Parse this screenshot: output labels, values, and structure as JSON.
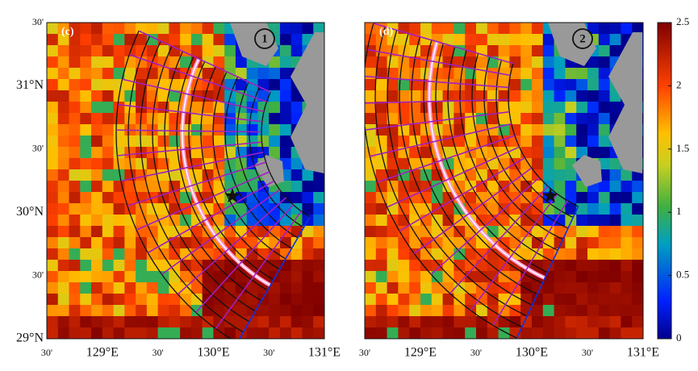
{
  "panels": [
    {
      "label": "(c)",
      "marker": "1"
    },
    {
      "label": "(d)",
      "marker": "2"
    }
  ],
  "y_labels": [
    "30'",
    "31°N",
    "30'",
    "30°N",
    "30'",
    "29°N"
  ],
  "x_labels": [
    "30'",
    "129°E",
    "30'",
    "130°E",
    "30'",
    "131°E"
  ],
  "colorbar": {
    "range": [
      0,
      2.5
    ],
    "ticks": [
      0,
      0.5,
      1,
      1.5,
      2,
      2.5
    ]
  }
}
